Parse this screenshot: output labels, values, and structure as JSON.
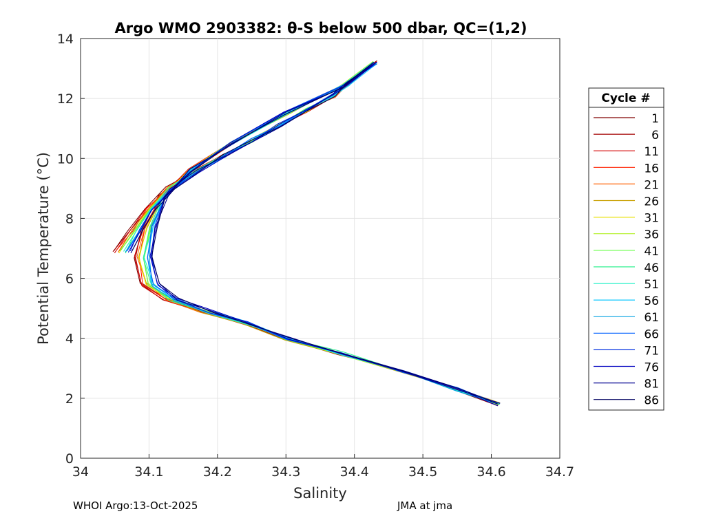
{
  "chart_data": {
    "type": "line",
    "title": "Argo WMO 2903382: θ-S below 500 dbar,  QC=(1,2)",
    "xlabel": "Salinity",
    "ylabel": "Potential Temperature (°C)",
    "xlim": [
      34,
      34.7
    ],
    "ylim": [
      0,
      14
    ],
    "xticks": [
      34,
      34.1,
      34.2,
      34.3,
      34.4,
      34.5,
      34.6,
      34.7
    ],
    "xtick_labels": [
      "34",
      "34.1",
      "34.2",
      "34.3",
      "34.4",
      "34.5",
      "34.6",
      "34.7"
    ],
    "yticks": [
      0,
      2,
      4,
      6,
      8,
      10,
      12,
      14
    ],
    "ytick_labels": [
      "0",
      "2",
      "4",
      "6",
      "8",
      "10",
      "12",
      "14"
    ],
    "grid": true,
    "legend": {
      "title": "Cycle #",
      "placement": "right",
      "entries": [
        {
          "label": "1",
          "color": "#800000"
        },
        {
          "label": "6",
          "color": "#a30000"
        },
        {
          "label": "11",
          "color": "#d40000"
        },
        {
          "label": "16",
          "color": "#ff2000"
        },
        {
          "label": "21",
          "color": "#ff6000"
        },
        {
          "label": "26",
          "color": "#c8a000"
        },
        {
          "label": "31",
          "color": "#e8e000"
        },
        {
          "label": "36",
          "color": "#b0f020"
        },
        {
          "label": "41",
          "color": "#60ff40"
        },
        {
          "label": "46",
          "color": "#30f090"
        },
        {
          "label": "51",
          "color": "#20f0c8"
        },
        {
          "label": "56",
          "color": "#10c8ff"
        },
        {
          "label": "61",
          "color": "#00a0e0"
        },
        {
          "label": "66",
          "color": "#0060ff"
        },
        {
          "label": "71",
          "color": "#0030e0"
        },
        {
          "label": "76",
          "color": "#0000c0"
        },
        {
          "label": "81",
          "color": "#000090"
        },
        {
          "label": "86",
          "color": "#000060"
        }
      ]
    },
    "reference_profile": {
      "s": [
        34.06,
        34.08,
        34.1,
        34.13,
        34.17,
        34.21,
        34.25,
        34.29,
        34.33,
        34.37,
        34.39,
        34.43,
        34.38,
        34.3,
        34.22,
        34.16,
        34.12,
        34.1,
        34.09,
        34.1,
        34.13,
        34.18,
        34.24,
        34.3,
        34.38,
        34.47,
        34.55,
        34.61
      ],
      "t": [
        6.9,
        7.6,
        8.3,
        9.0,
        9.6,
        10.1,
        10.6,
        11.1,
        11.6,
        12.1,
        12.5,
        13.2,
        12.4,
        11.5,
        10.5,
        9.6,
        8.7,
        7.7,
        6.7,
        5.8,
        5.3,
        4.9,
        4.5,
        4.0,
        3.5,
        2.9,
        2.3,
        1.8
      ]
    }
  },
  "footer": {
    "left": "WHOI Argo:13-Oct-2025",
    "right": "JMA at jma"
  }
}
